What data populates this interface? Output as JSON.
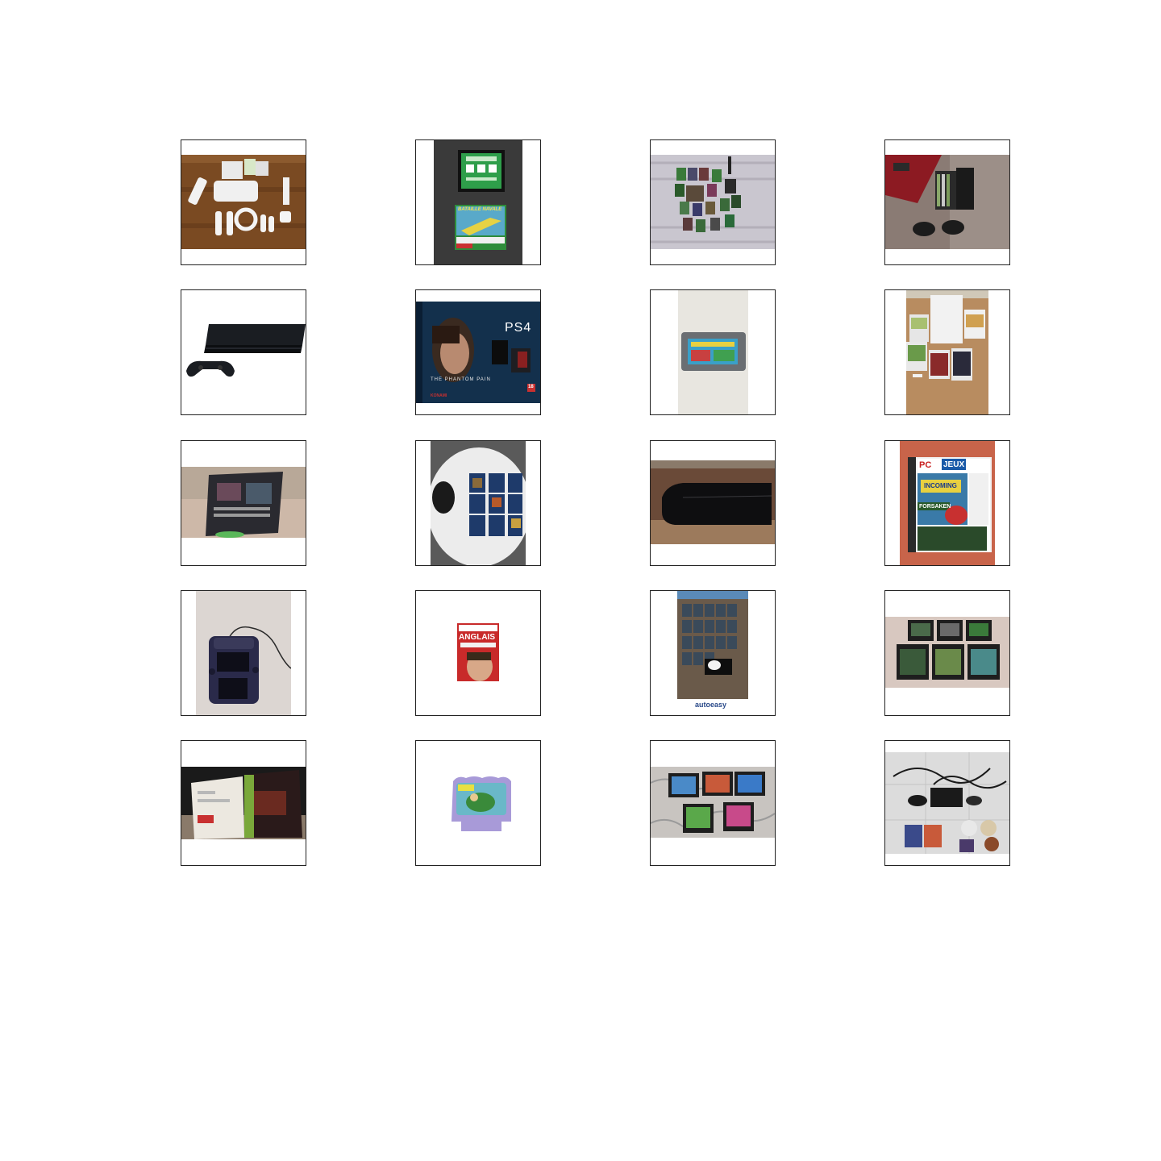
{
  "grid": {
    "columns": 4,
    "rows": 5,
    "tiles": [
      {
        "subject": "wii-console-accessories-icon"
      },
      {
        "subject": "game-cartridge-bataille-navale-icon",
        "label": "BATAILLE NAVALE"
      },
      {
        "subject": "game-collection-on-bed-icon"
      },
      {
        "subject": "console-with-games-and-controllers-icon"
      },
      {
        "subject": "ps4-console-icon"
      },
      {
        "subject": "ps4-bundle-box-icon",
        "brand": "PS4",
        "title": "THE PHANTOM PAIN",
        "publisher": "KONAMI",
        "rating": "18"
      },
      {
        "subject": "gba-cartridge-icon"
      },
      {
        "subject": "wii-console-with-games-icon"
      },
      {
        "subject": "game-case-back-icon"
      },
      {
        "subject": "ps4-games-on-table-icon"
      },
      {
        "subject": "ps3-console-icon"
      },
      {
        "subject": "pc-jeux-magazine-cd-icon",
        "brand": "PC",
        "title": "JEUX",
        "headline1": "INCOMING",
        "headline2": "FORSAKEN"
      },
      {
        "subject": "nintendo-2ds-icon"
      },
      {
        "subject": "language-software-box-icon",
        "title": "ANGLAIS"
      },
      {
        "subject": "games-listing-screenshot-icon",
        "footer": "autoeasy"
      },
      {
        "subject": "gameboy-games-collection-icon"
      },
      {
        "subject": "xbox-game-case-open-icon"
      },
      {
        "subject": "vsmile-cartridge-icon"
      },
      {
        "subject": "game-gear-cartridges-icon"
      },
      {
        "subject": "console-cables-discs-icon"
      }
    ]
  }
}
